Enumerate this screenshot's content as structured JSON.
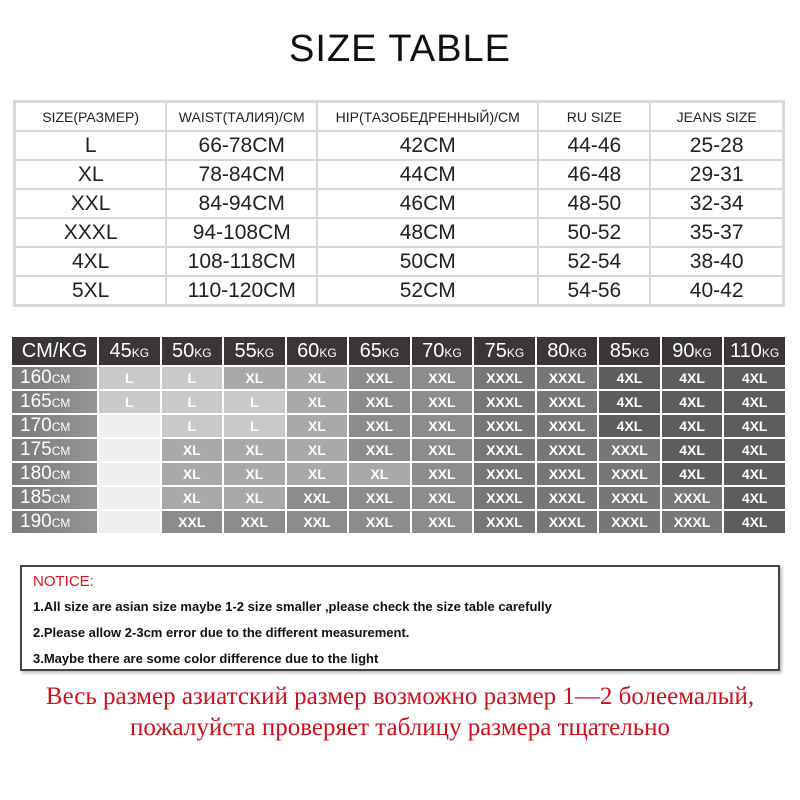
{
  "title": "SIZE TABLE",
  "size_table": {
    "headers": [
      "SIZE(РАЗМЕР)",
      "WAIST(ТАЛИЯ)/CM",
      "HIP(ТАЗОБЕДРЕННЫЙ)/CM",
      "RU SIZE",
      "JEANS SIZE"
    ],
    "rows": [
      [
        "L",
        "66-78CM",
        "42CM",
        "44-46",
        "25-28"
      ],
      [
        "XL",
        "78-84CM",
        "44CM",
        "46-48",
        "29-31"
      ],
      [
        "XXL",
        "84-94CM",
        "46CM",
        "48-50",
        "32-34"
      ],
      [
        "XXXL",
        "94-108CM",
        "48CM",
        "50-52",
        "35-37"
      ],
      [
        "4XL",
        "108-118CM",
        "50CM",
        "52-54",
        "38-40"
      ],
      [
        "5XL",
        "110-120CM",
        "52CM",
        "54-56",
        "40-42"
      ]
    ]
  },
  "weight_table": {
    "corner": "CM/KG",
    "weights": [
      {
        "num": "45",
        "unit": "KG"
      },
      {
        "num": "50",
        "unit": "KG"
      },
      {
        "num": "55",
        "unit": "KG"
      },
      {
        "num": "60",
        "unit": "KG"
      },
      {
        "num": "65",
        "unit": "KG"
      },
      {
        "num": "70",
        "unit": "KG"
      },
      {
        "num": "75",
        "unit": "KG"
      },
      {
        "num": "80",
        "unit": "KG"
      },
      {
        "num": "85",
        "unit": "KG"
      },
      {
        "num": "90",
        "unit": "KG"
      },
      {
        "num": "110",
        "unit": "KG"
      }
    ],
    "heights": [
      {
        "num": "160",
        "unit": "CM"
      },
      {
        "num": "165",
        "unit": "CM"
      },
      {
        "num": "170",
        "unit": "CM"
      },
      {
        "num": "175",
        "unit": "CM"
      },
      {
        "num": "180",
        "unit": "CM"
      },
      {
        "num": "185",
        "unit": "CM"
      },
      {
        "num": "190",
        "unit": "CM"
      }
    ],
    "cells": [
      [
        "L",
        "L",
        "XL",
        "XL",
        "XXL",
        "XXL",
        "XXXL",
        "XXXL",
        "4XL",
        "4XL",
        "4XL"
      ],
      [
        "L",
        "L",
        "L",
        "XL",
        "XXL",
        "XXL",
        "XXXL",
        "XXXL",
        "4XL",
        "4XL",
        "4XL"
      ],
      [
        "",
        "L",
        "L",
        "XL",
        "XXL",
        "XXL",
        "XXXL",
        "XXXL",
        "4XL",
        "4XL",
        "4XL"
      ],
      [
        "",
        "XL",
        "XL",
        "XL",
        "XXL",
        "XXL",
        "XXXL",
        "XXXL",
        "XXXL",
        "4XL",
        "4XL"
      ],
      [
        "",
        "XL",
        "XL",
        "XL",
        "XL",
        "XXL",
        "XXXL",
        "XXXL",
        "XXXL",
        "4XL",
        "4XL"
      ],
      [
        "",
        "XL",
        "XL",
        "XXL",
        "XXL",
        "XXL",
        "XXXL",
        "XXXL",
        "XXXL",
        "XXXL",
        "4XL"
      ],
      [
        "",
        "XXL",
        "XXL",
        "XXL",
        "XXL",
        "XXL",
        "XXXL",
        "XXXL",
        "XXXL",
        "XXXL",
        "4XL"
      ]
    ],
    "colors": {
      "": "#efefef",
      "L": "#c9c9c9",
      "XL": "#a9a9a9",
      "XXL": "#8c8c8c",
      "XXXL": "#777777",
      "4XL": "#5d5d5d"
    }
  },
  "notice": {
    "heading": "NOTICE:",
    "lines": [
      "1.All size are asian size maybe 1-2 size smaller ,please check the size table carefully",
      "2.Please allow 2-3cm error due to the different measurement.",
      "3.Maybe there are some color difference due to the light"
    ]
  },
  "russian_notice": {
    "line1": "Весь размер азиатский размер возможно размер 1—2 болеемалый,",
    "line2": "пожалуйста проверяет таблицу размера тщательно"
  },
  "colors": {
    "notice_red": "#e8101a",
    "russian_red": "#d0101c",
    "header_dark": "#3a3536"
  }
}
